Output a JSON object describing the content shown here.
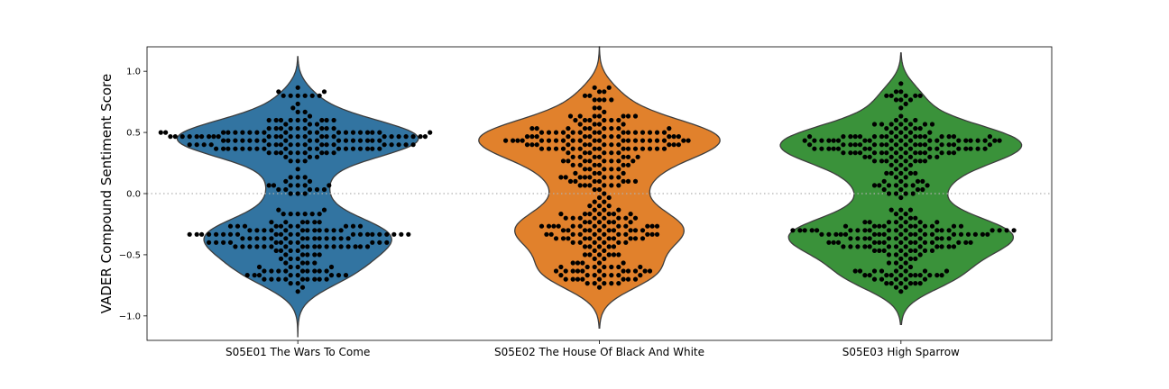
{
  "chart_data": {
    "type": "violin",
    "ylabel": "VADER Compound Sentiment Score",
    "xlabel": "",
    "ylim": [
      -1.2,
      1.2
    ],
    "yticks": [
      -1.0,
      -0.5,
      0.0,
      0.5,
      1.0
    ],
    "ytick_labels": [
      "−1.0",
      "−0.5",
      "0.0",
      "0.5",
      "1.0"
    ],
    "reference_line": {
      "y": 0.0,
      "style": "dotted",
      "color": "#b0b0b0"
    },
    "grid": false,
    "legend": "none",
    "categories": [
      "S05E01 The Wars To Come",
      "S05E02 The House Of Black And White",
      "S05E03 High Sparrow"
    ],
    "series": [
      {
        "category": "S05E01 The Wars To Come",
        "color": "#3274a1",
        "range": [
          -1.17,
          1.12
        ],
        "clusters": [
          {
            "center": 0.45,
            "count": 140,
            "spread": 0.09
          },
          {
            "center": 0.8,
            "count": 8,
            "spread": 0.04
          },
          {
            "center": 0.05,
            "count": 20,
            "spread": 0.06
          },
          {
            "center": -0.35,
            "count": 110,
            "spread": 0.1
          },
          {
            "center": -0.65,
            "count": 40,
            "spread": 0.07
          }
        ]
      },
      {
        "category": "S05E02 The House Of Black And White",
        "color": "#e1812c",
        "range": [
          -1.1,
          1.2
        ],
        "clusters": [
          {
            "center": 0.45,
            "count": 130,
            "spread": 0.1
          },
          {
            "center": 0.82,
            "count": 10,
            "spread": 0.05
          },
          {
            "center": 0.1,
            "count": 40,
            "spread": 0.1
          },
          {
            "center": -0.3,
            "count": 90,
            "spread": 0.1
          },
          {
            "center": -0.65,
            "count": 45,
            "spread": 0.07
          }
        ]
      },
      {
        "category": "S05E03 High Sparrow",
        "color": "#3a923a",
        "range": [
          -1.07,
          1.15
        ],
        "clusters": [
          {
            "center": 0.4,
            "count": 130,
            "spread": 0.1
          },
          {
            "center": 0.8,
            "count": 12,
            "spread": 0.05
          },
          {
            "center": 0.05,
            "count": 25,
            "spread": 0.07
          },
          {
            "center": -0.35,
            "count": 120,
            "spread": 0.1
          },
          {
            "center": -0.68,
            "count": 35,
            "spread": 0.06
          }
        ]
      }
    ],
    "swarm_point_color": "#000000"
  }
}
